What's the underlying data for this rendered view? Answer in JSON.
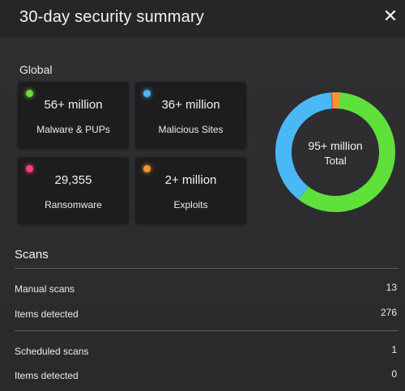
{
  "header": {
    "title": "30-day security summary",
    "close_glyph": "✕"
  },
  "global": {
    "title": "Global",
    "cards": [
      {
        "value": "56+ million",
        "label": "Malware & PUPs",
        "dot_color": "#6ddc3a"
      },
      {
        "value": "36+ million",
        "label": "Malicious Sites",
        "dot_color": "#49b6f5"
      },
      {
        "value": "29,355",
        "label": "Ransomware",
        "dot_color": "#ff3d7f"
      },
      {
        "value": "2+ million",
        "label": "Exploits",
        "dot_color": "#f5952f"
      }
    ],
    "donut": {
      "center_value": "95+ million",
      "center_label": "Total",
      "segments": [
        {
          "name": "Malware & PUPs",
          "value": 56,
          "color": "#5fe03a"
        },
        {
          "name": "Malicious Sites",
          "value": 36,
          "color": "#4ab8f6"
        },
        {
          "name": "Ransomware",
          "value": 0.03,
          "color": "#ff3d7f"
        },
        {
          "name": "Exploits",
          "value": 2,
          "color": "#f5952f"
        }
      ]
    }
  },
  "scans": {
    "title": "Scans",
    "rows": [
      {
        "label": "Manual scans",
        "value": "13"
      },
      {
        "label": "Items detected",
        "value": "276"
      },
      {
        "label": "Scheduled scans",
        "value": "1"
      },
      {
        "label": "Items detected",
        "value": "0"
      }
    ]
  }
}
